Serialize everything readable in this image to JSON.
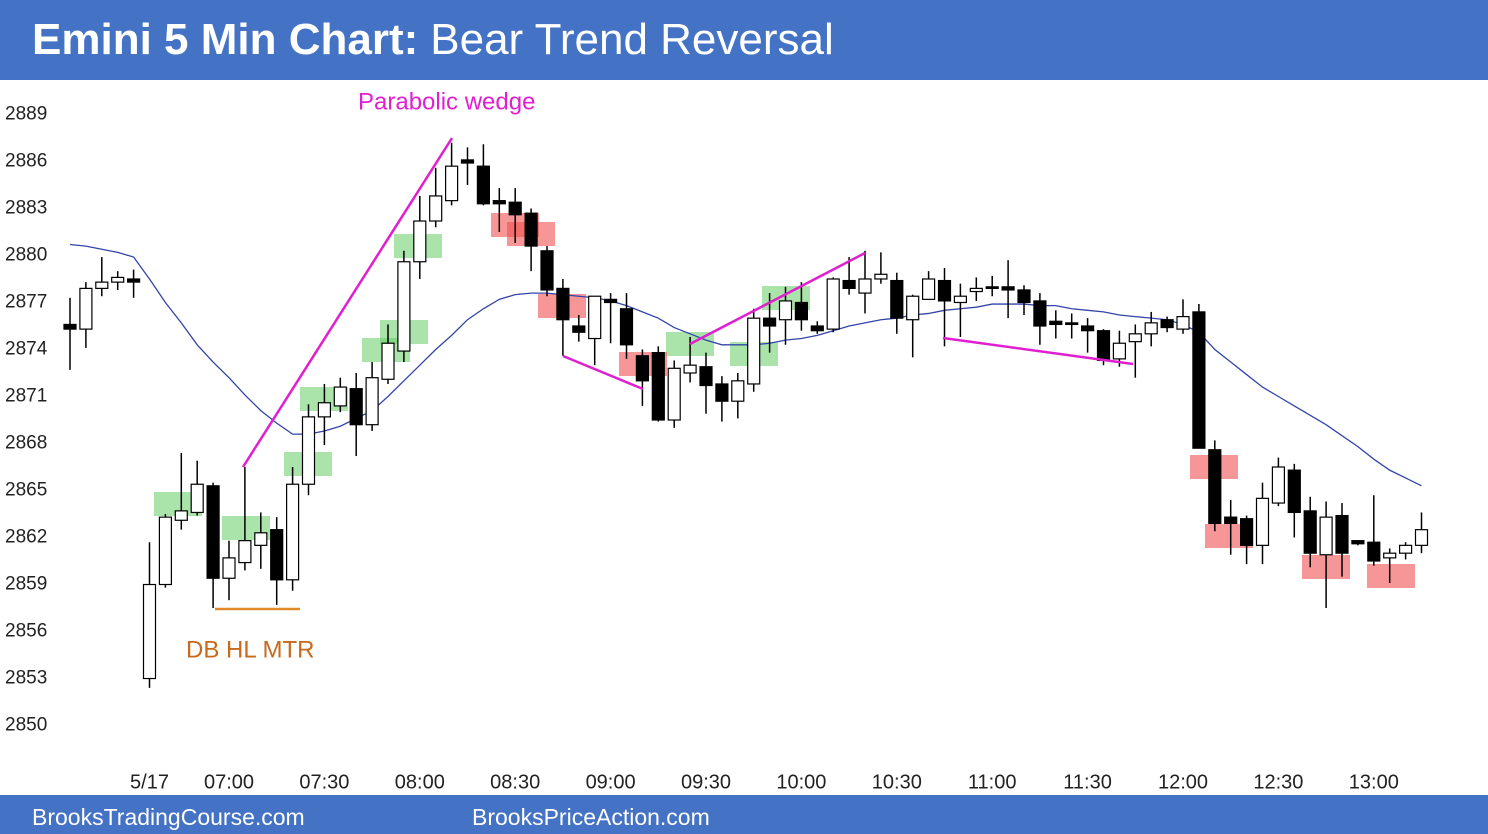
{
  "chart_data": {
    "type": "candlestick",
    "title": {
      "bold": "Emini 5 Min Chart:",
      "rest": "Bear Trend Reversal"
    },
    "footer": [
      "BrooksTradingCourse.com",
      "BrooksPriceAction.com"
    ],
    "annotations": [
      "Parabolic wedge",
      "DB HL MTR"
    ],
    "categories": [
      null,
      null,
      null,
      null,
      null,
      "5/17",
      null,
      null,
      null,
      null,
      "07:00",
      null,
      null,
      null,
      null,
      null,
      "07:30",
      null,
      null,
      null,
      null,
      null,
      "08:00",
      null,
      null,
      null,
      null,
      null,
      "08:30",
      null,
      null,
      null,
      null,
      null,
      "09:00",
      null,
      null,
      null,
      null,
      null,
      "09:30",
      null,
      null,
      null,
      null,
      null,
      "10:00",
      null,
      null,
      null,
      null,
      null,
      "10:30",
      null,
      null,
      null,
      null,
      null,
      "11:00",
      null,
      null,
      null,
      null,
      null,
      "11:30",
      null,
      null,
      null,
      null,
      null,
      "12:00",
      null,
      null,
      null,
      null,
      null,
      "12:30",
      null,
      null,
      null,
      null,
      null,
      "13:00",
      null,
      null,
      null
    ],
    "open": [
      2875.6,
      2875.3,
      2877.9,
      2878.3,
      2878.5,
      2853.0,
      2859.0,
      2863.1,
      2863.6,
      2865.3,
      2859.4,
      2860.4,
      2861.5,
      2862.5,
      2859.3,
      2865.4,
      2869.7,
      2870.4,
      2871.5,
      2869.2,
      2872.1,
      2873.9,
      2879.6,
      2882.2,
      2883.5,
      2886.1,
      2885.7,
      2883.5,
      2883.4,
      2882.7,
      2880.3,
      2877.9,
      2875.5,
      2874.7,
      2877.2,
      2876.6,
      2873.6,
      2873.8,
      2869.5,
      2872.5,
      2872.9,
      2871.8,
      2870.7,
      2871.8,
      2876.0,
      2875.9,
      2877.0,
      2875.5,
      2875.3,
      2878.4,
      2877.6,
      2878.5,
      2878.4,
      2875.9,
      2877.2,
      2878.4,
      2877.0,
      2877.7,
      2878.0,
      2878.0,
      2877.8,
      2877.1,
      2875.8,
      2875.7,
      2875.5,
      2875.2,
      2873.4,
      2874.5,
      2875.0,
      2875.9,
      2875.3,
      2876.4,
      2867.6,
      2863.3,
      2863.2,
      2861.5,
      2864.2,
      2866.3,
      2863.7,
      2860.9,
      2863.4,
      2861.8,
      2861.7,
      2860.7,
      2861.0,
      2861.5
    ],
    "high": [
      2877.3,
      2878.3,
      2879.9,
      2879.0,
      2879.1,
      2861.7,
      2863.5,
      2867.4,
      2866.9,
      2865.5,
      2861.8,
      2866.5,
      2863.6,
      2863.3,
      2866.5,
      2870.5,
      2871.8,
      2872.2,
      2872.5,
      2873.2,
      2875.6,
      2880.3,
      2883.8,
      2885.6,
      2887.2,
      2886.9,
      2887.1,
      2884.3,
      2884.3,
      2883.0,
      2880.6,
      2878.5,
      2876.2,
      2877.4,
      2877.6,
      2877.6,
      2874.0,
      2874.2,
      2873.3,
      2874.8,
      2873.8,
      2872.3,
      2872.5,
      2876.6,
      2877.6,
      2878.0,
      2878.3,
      2875.8,
      2878.6,
      2879.9,
      2880.3,
      2880.2,
      2878.9,
      2877.5,
      2879.0,
      2879.2,
      2878.2,
      2878.6,
      2878.7,
      2879.7,
      2878.1,
      2877.6,
      2876.5,
      2876.3,
      2876.0,
      2875.3,
      2875.2,
      2875.6,
      2876.4,
      2876.1,
      2877.2,
      2876.9,
      2868.2,
      2864.4,
      2863.4,
      2865.5,
      2867.1,
      2866.7,
      2864.6,
      2864.3,
      2864.2,
      2861.8,
      2864.7,
      2861.3,
      2861.7,
      2863.6
    ],
    "low": [
      2872.7,
      2874.1,
      2877.4,
      2877.8,
      2877.3,
      2852.4,
      2858.8,
      2862.5,
      2863.4,
      2857.5,
      2858.0,
      2859.9,
      2860.0,
      2857.7,
      2858.6,
      2864.7,
      2867.9,
      2870.0,
      2867.2,
      2868.8,
      2871.8,
      2873.2,
      2878.5,
      2881.8,
      2883.2,
      2884.5,
      2883.2,
      2881.5,
      2880.8,
      2879.0,
      2877.4,
      2873.6,
      2874.5,
      2873.0,
      2874.4,
      2873.4,
      2870.4,
      2869.4,
      2869.0,
      2871.9,
      2869.9,
      2869.4,
      2869.6,
      2871.3,
      2873.8,
      2874.3,
      2875.2,
      2875.0,
      2875.1,
      2877.5,
      2876.3,
      2878.2,
      2875.0,
      2873.5,
      2877.2,
      2874.2,
      2874.8,
      2877.1,
      2877.4,
      2876.0,
      2876.2,
      2874.3,
      2874.7,
      2874.7,
      2873.8,
      2873.0,
      2872.9,
      2872.2,
      2874.2,
      2875.1,
      2875.0,
      2867.7,
      2862.4,
      2860.9,
      2860.3,
      2860.3,
      2864.0,
      2862.0,
      2860.1,
      2857.5,
      2859.5,
      2861.5,
      2860.2,
      2859.1,
      2860.6,
      2861.0
    ],
    "close": [
      2875.3,
      2877.9,
      2878.3,
      2878.6,
      2878.3,
      2859.0,
      2863.3,
      2863.7,
      2865.4,
      2859.4,
      2860.7,
      2861.8,
      2862.3,
      2859.3,
      2865.4,
      2869.7,
      2870.6,
      2871.6,
      2869.2,
      2872.2,
      2874.4,
      2879.6,
      2882.2,
      2883.8,
      2885.7,
      2885.9,
      2883.3,
      2883.3,
      2882.6,
      2880.6,
      2877.8,
      2875.9,
      2875.1,
      2877.4,
      2877.0,
      2874.3,
      2872.0,
      2869.5,
      2872.8,
      2873.0,
      2871.7,
      2870.7,
      2872.0,
      2876.0,
      2875.5,
      2877.1,
      2875.9,
      2875.2,
      2878.5,
      2877.9,
      2878.5,
      2878.8,
      2876.0,
      2877.4,
      2878.5,
      2877.1,
      2877.4,
      2877.9,
      2877.9,
      2877.8,
      2877.0,
      2875.5,
      2875.6,
      2875.6,
      2875.2,
      2873.3,
      2874.4,
      2875.0,
      2875.7,
      2875.4,
      2876.1,
      2867.7,
      2862.9,
      2862.9,
      2861.5,
      2864.5,
      2866.5,
      2863.6,
      2861.0,
      2863.3,
      2861.0,
      2861.6,
      2860.5,
      2861.0,
      2861.5,
      2862.5
    ],
    "up_color": "#ffffff",
    "down_color": "#000000",
    "ema": {
      "color": "#3344aa",
      "values": [
        2880.7,
        2880.6,
        2880.4,
        2880.2,
        2879.9,
        2878.5,
        2877.0,
        2875.7,
        2874.3,
        2873.2,
        2872.2,
        2871.1,
        2870.1,
        2869.3,
        2868.6,
        2868.6,
        2868.8,
        2869.1,
        2869.6,
        2870.1,
        2871.0,
        2872.0,
        2873.0,
        2874.0,
        2874.9,
        2875.9,
        2876.6,
        2877.2,
        2877.5,
        2877.6,
        2877.6,
        2877.5,
        2877.4,
        2877.3,
        2877.1,
        2876.8,
        2876.4,
        2876.0,
        2875.4,
        2875.0,
        2874.6,
        2874.3,
        2874.3,
        2874.3,
        2874.4,
        2874.6,
        2874.7,
        2874.9,
        2875.2,
        2875.5,
        2875.7,
        2875.9,
        2876.0,
        2876.2,
        2876.3,
        2876.5,
        2876.6,
        2876.7,
        2876.9,
        2876.9,
        2876.9,
        2876.8,
        2876.8,
        2876.6,
        2876.5,
        2876.4,
        2876.2,
        2876.1,
        2876.0,
        2875.9,
        2875.6,
        2875.1,
        2874.0,
        2873.2,
        2872.4,
        2871.6,
        2871.0,
        2870.4,
        2869.8,
        2869.2,
        2868.5,
        2867.8,
        2867.0,
        2866.3,
        2865.8,
        2865.3
      ]
    },
    "ylim": [
      2847.8,
      2891.2
    ],
    "yticks": [
      2850,
      2853,
      2856,
      2859,
      2862,
      2865,
      2868,
      2871,
      2874,
      2877,
      2880,
      2883,
      2886,
      2889
    ],
    "grid": false
  }
}
